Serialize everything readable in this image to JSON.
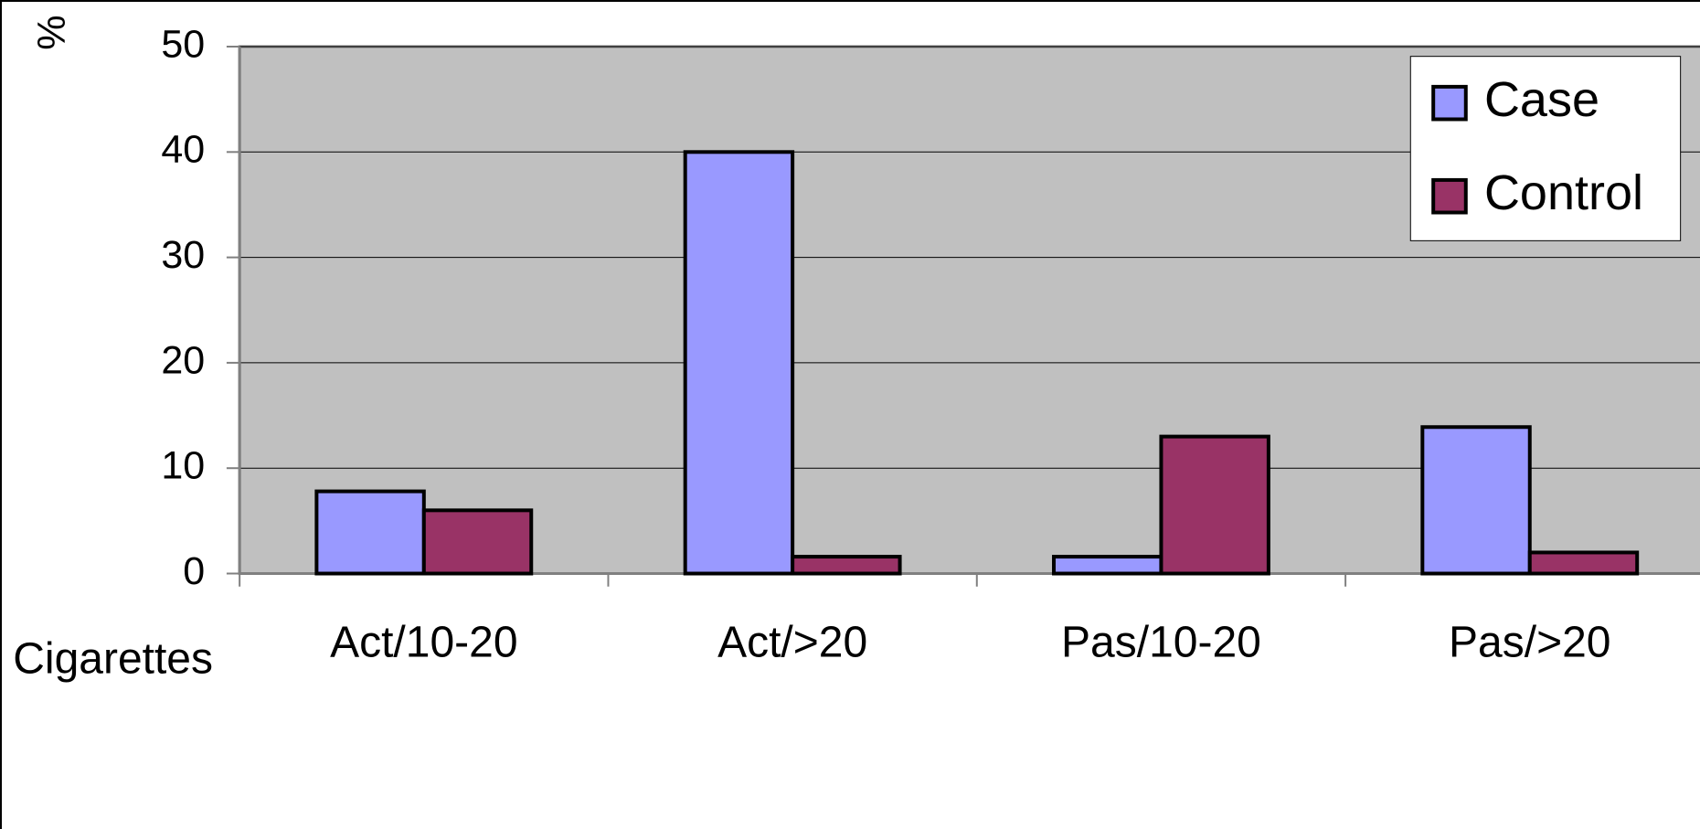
{
  "chart_data": {
    "type": "bar",
    "ylabel": "%",
    "xlabel": "Cigarettes",
    "categories": [
      "Act/10-20",
      "Act/>20",
      "Pas/10-20",
      "Pas/>20"
    ],
    "series": [
      {
        "name": "Case",
        "color": "#9999ff",
        "values": [
          7.8,
          40,
          1.6,
          13.9
        ]
      },
      {
        "name": "Control",
        "color": "#993366",
        "values": [
          6,
          1.6,
          13,
          2
        ]
      }
    ],
    "ylim": [
      0,
      50
    ],
    "yticks": [
      0,
      10,
      20,
      30,
      40,
      50
    ],
    "grid": true,
    "legend": "upper right"
  }
}
